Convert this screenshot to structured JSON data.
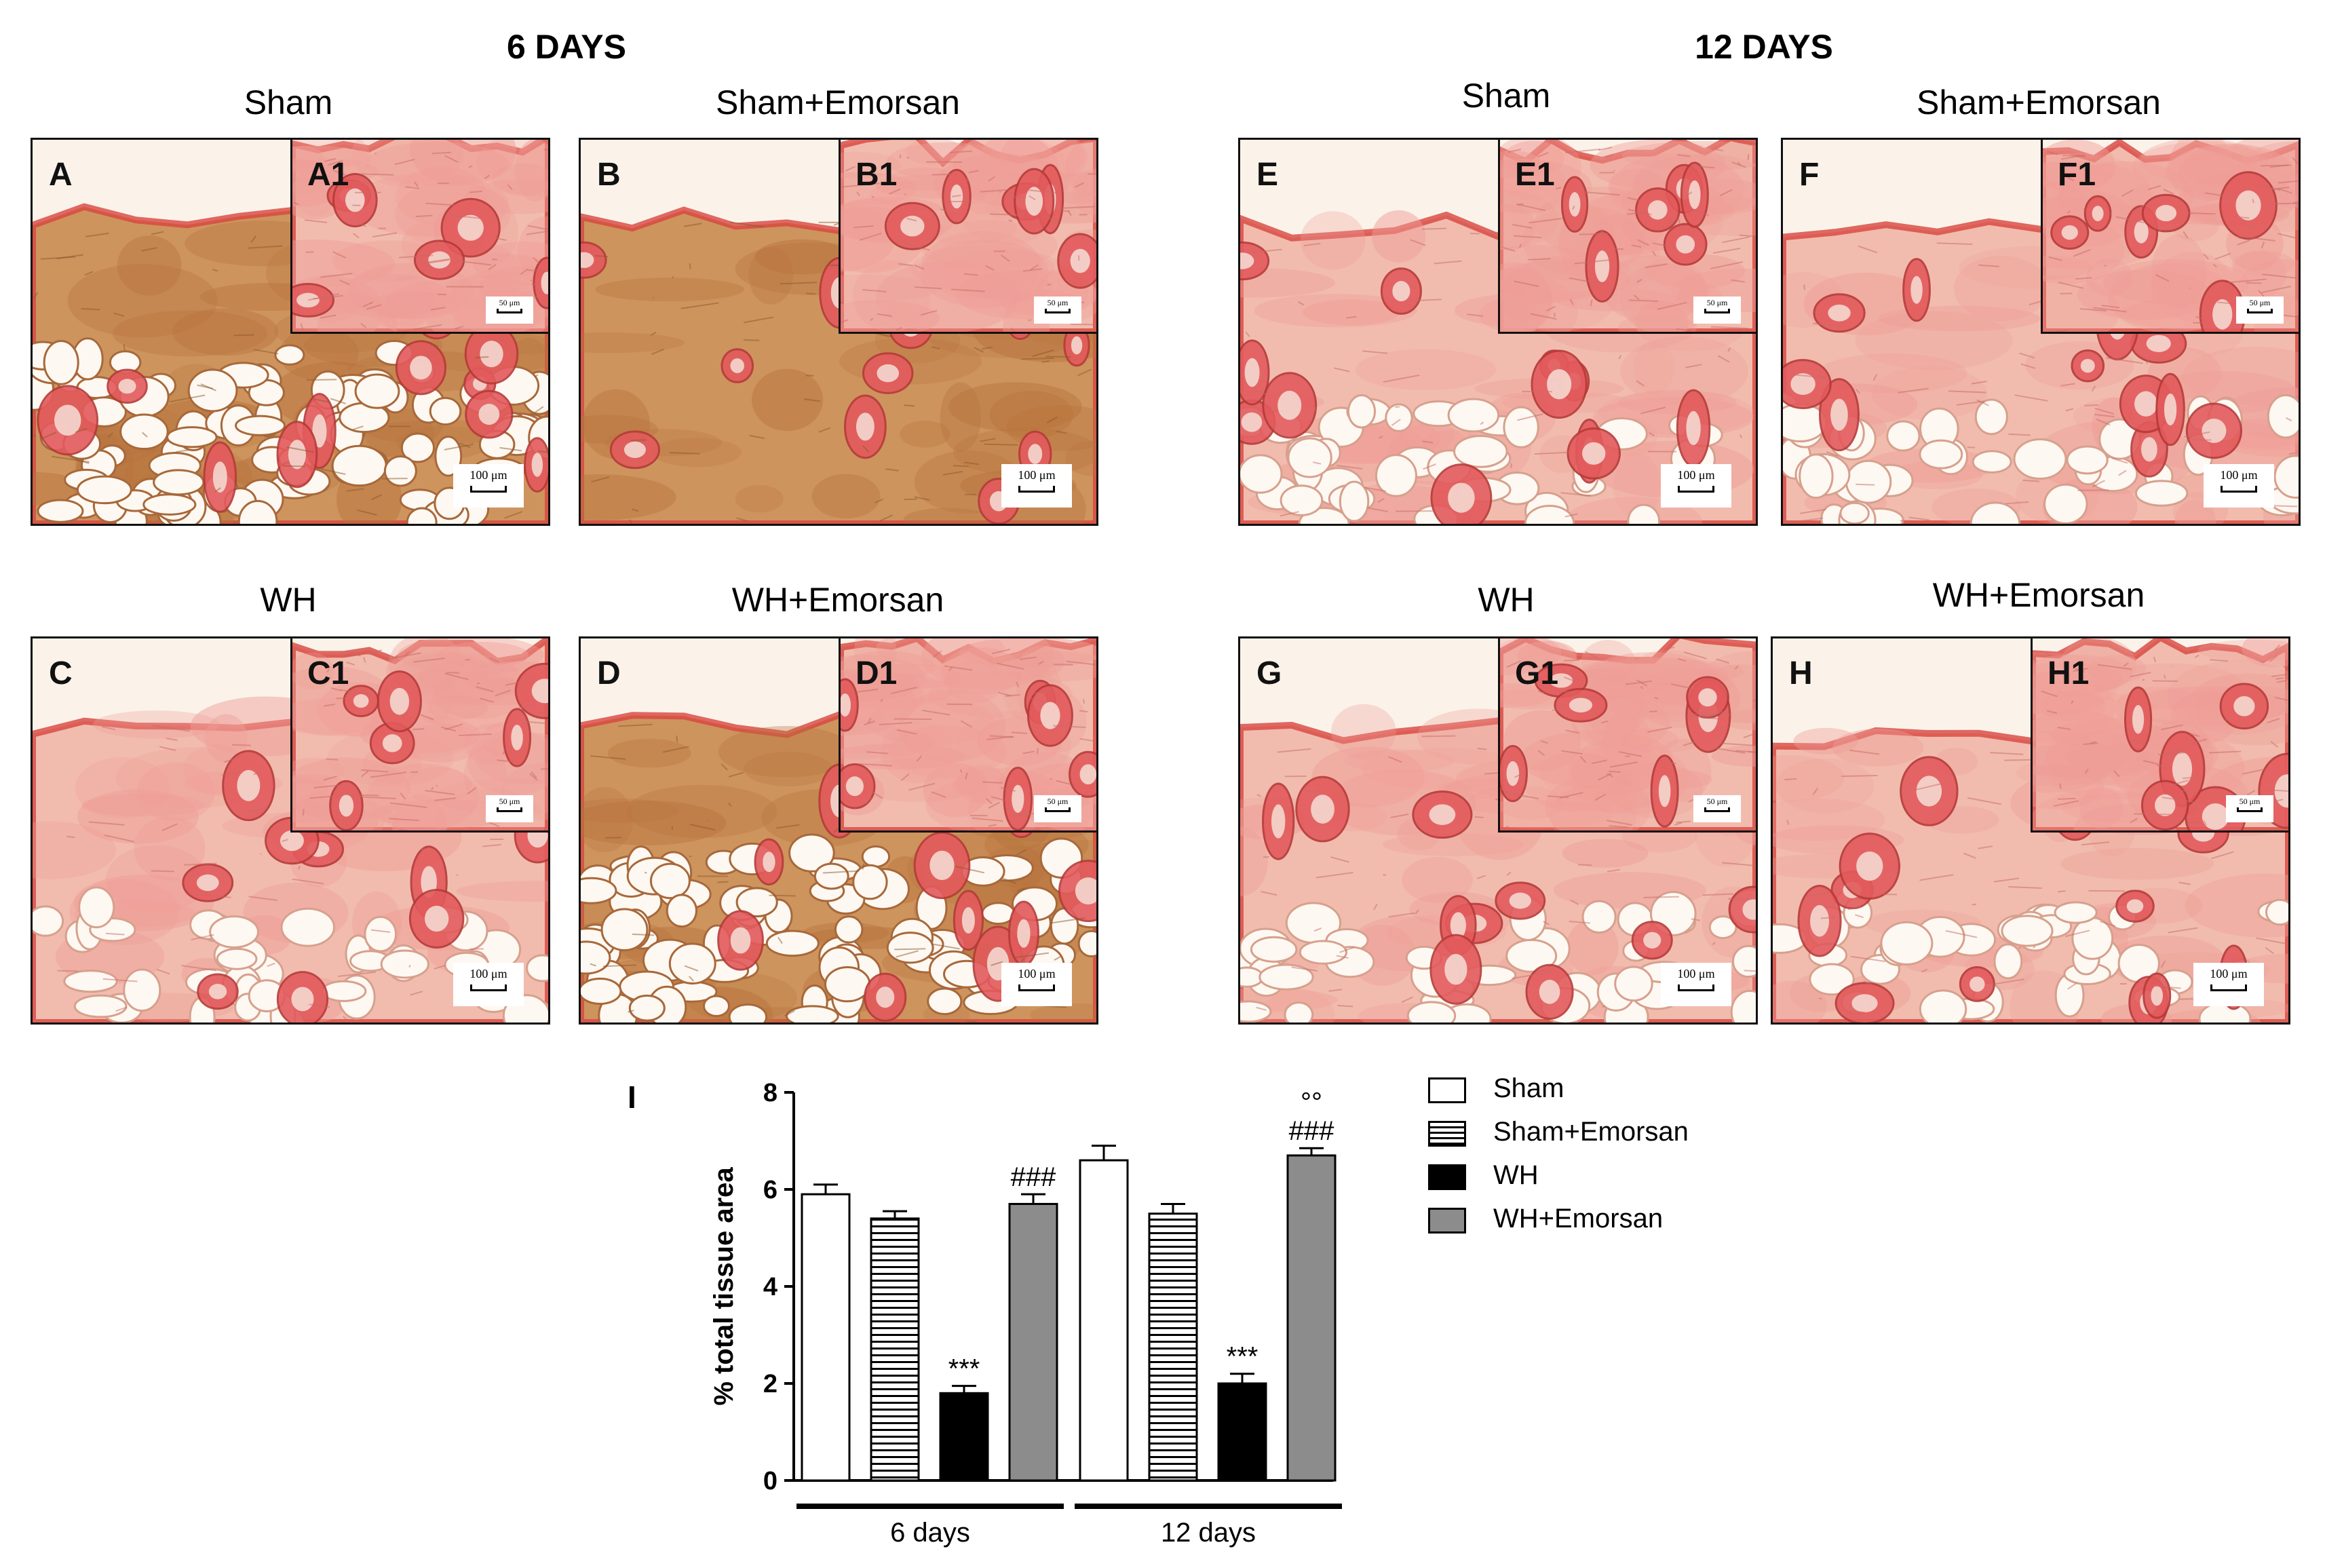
{
  "groups": [
    {
      "id": "g6",
      "title": "6 DAYS"
    },
    {
      "id": "g12",
      "title": "12 DAYS"
    }
  ],
  "panels": [
    {
      "letter": "A",
      "inset": "A1",
      "label": "Sham",
      "scale_main": "100 μm",
      "scale_inset": "50 μm"
    },
    {
      "letter": "B",
      "inset": "B1",
      "label": "Sham+Emorsan",
      "scale_main": "100 μm",
      "scale_inset": "50 μm"
    },
    {
      "letter": "C",
      "inset": "C1",
      "label": "WH",
      "scale_main": "100 μm",
      "scale_inset": "50 μm"
    },
    {
      "letter": "D",
      "inset": "D1",
      "label": "WH+Emorsan",
      "scale_main": "100 μm",
      "scale_inset": "50 μm"
    },
    {
      "letter": "E",
      "inset": "E1",
      "label": "Sham",
      "scale_main": "100 μm",
      "scale_inset": "50 μm"
    },
    {
      "letter": "F",
      "inset": "F1",
      "label": "Sham+Emorsan",
      "scale_main": "100 μm",
      "scale_inset": "50 μm"
    },
    {
      "letter": "G",
      "inset": "G1",
      "label": "WH",
      "scale_main": "100 μm",
      "scale_inset": "50 μm"
    },
    {
      "letter": "H",
      "inset": "H1",
      "label": "WH+Emorsan",
      "scale_main": "100 μm",
      "scale_inset": "50 μm"
    }
  ],
  "chart_panel_label": "I",
  "chart_data": {
    "type": "bar",
    "ylabel": "% total tissue area",
    "ylim": [
      0,
      8
    ],
    "yticks": [
      "0",
      "2",
      "4",
      "6",
      "8"
    ],
    "groups": [
      "6 days",
      "12 days"
    ],
    "series": [
      {
        "name": "Sham",
        "values": [
          5.9,
          6.6
        ],
        "errors": [
          0.2,
          0.3
        ],
        "fill": "#ffffff",
        "pattern": "none"
      },
      {
        "name": "Sham+Emorsan",
        "values": [
          5.4,
          5.5
        ],
        "errors": [
          0.15,
          0.2
        ],
        "fill": "#ffffff",
        "pattern": "horizontal-lines"
      },
      {
        "name": "WH",
        "values": [
          1.8,
          2.0
        ],
        "errors": [
          0.15,
          0.2
        ],
        "fill": "#000000",
        "pattern": "none"
      },
      {
        "name": "WH+Emorsan",
        "values": [
          5.7,
          6.7
        ],
        "errors": [
          0.2,
          0.15
        ],
        "fill": "#8c8c8c",
        "pattern": "none"
      }
    ],
    "annotations": [
      {
        "group": 0,
        "series": 2,
        "text": "***"
      },
      {
        "group": 0,
        "series": 3,
        "text": "###"
      },
      {
        "group": 1,
        "series": 2,
        "text": "***"
      },
      {
        "group": 1,
        "series": 3,
        "text": "###"
      },
      {
        "group": 1,
        "series": 3,
        "text": "°°"
      }
    ]
  },
  "colors": {
    "tissue_pink": "#e88583",
    "stroma_brown": "#c9894f",
    "background": "#fbf3ea",
    "adipocyte": "#fdf8f2",
    "follicle": "#e35a5c"
  }
}
